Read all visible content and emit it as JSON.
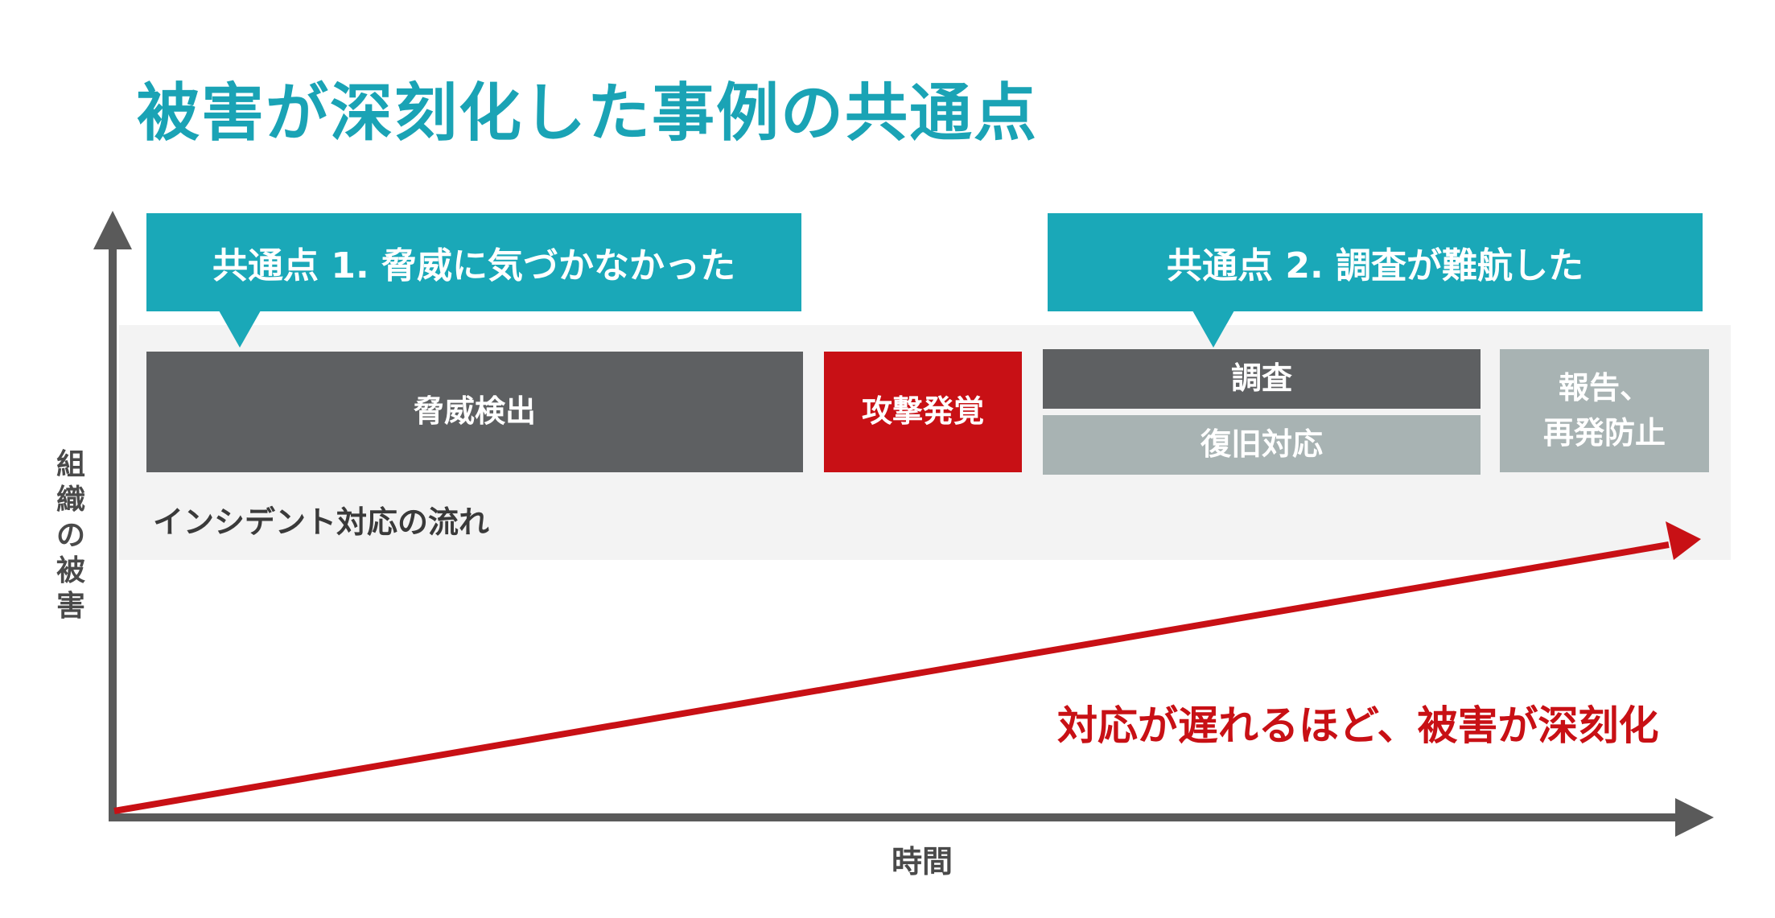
{
  "title": "被害が深刻化した事例の共通点",
  "callouts": [
    {
      "label": "共通点 1. 脅威に気づかなかった"
    },
    {
      "label": "共通点 2. 調査が難航した"
    }
  ],
  "flow": {
    "label": "インシデント対応の流れ",
    "steps": {
      "detection": "脅威検出",
      "attack_discovered": "攻撃発覚",
      "investigation": "調査",
      "recovery": "復旧対応",
      "report_line1": "報告、",
      "report_line2": "再発防止"
    }
  },
  "axes": {
    "y_label": "組織の被害",
    "x_label": "時間"
  },
  "trend_label": "対応が遅れるほど、被害が深刻化",
  "colors": {
    "title": "#1aa3b5",
    "callout": "#1aa8b8",
    "dark_step": "#5e6062",
    "alert_step": "#c81015",
    "light_step": "#a8b3b3",
    "trend": "#c81015",
    "axis": "#5a5a5a"
  }
}
